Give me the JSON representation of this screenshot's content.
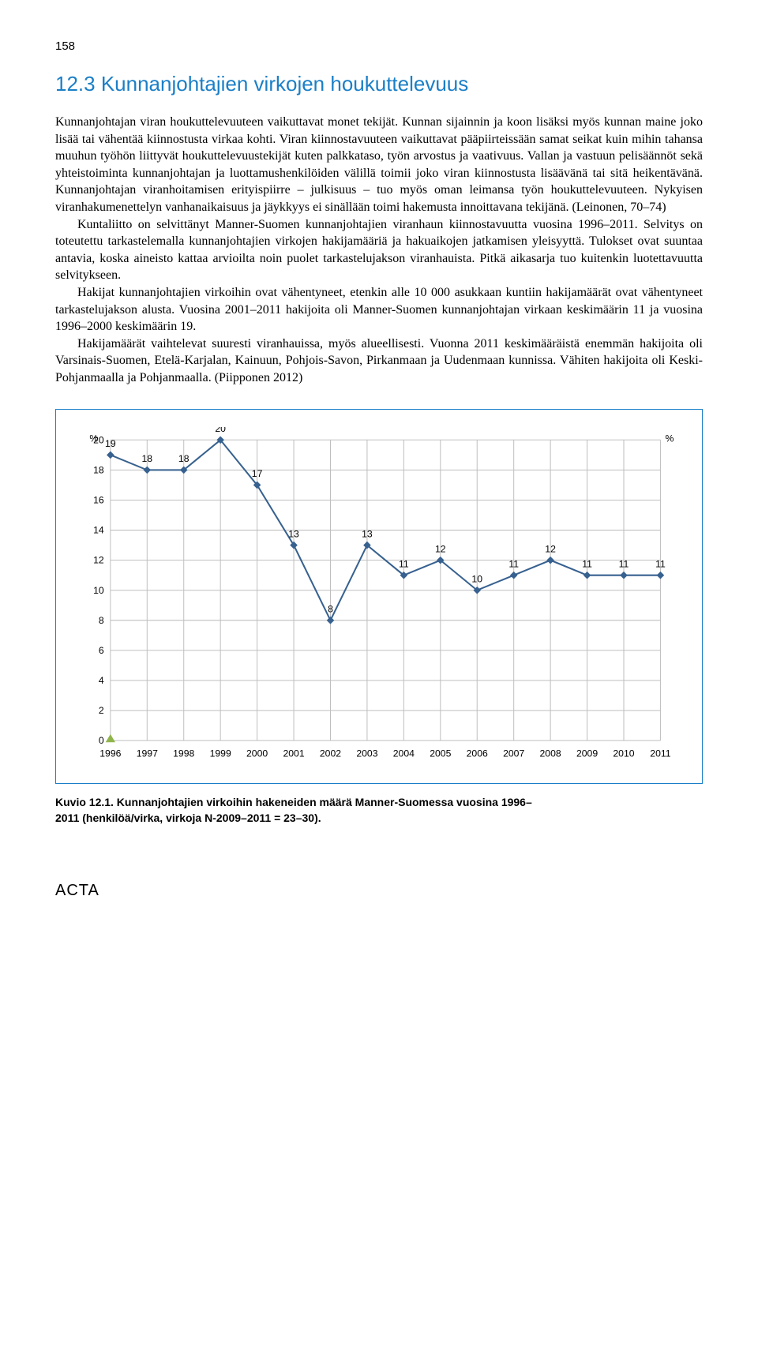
{
  "page_number": "158",
  "heading": "12.3 Kunnanjohtajien virkojen houkuttelevuus",
  "paragraphs": {
    "p1": "Kunnanjohtajan viran houkuttelevuuteen vaikuttavat monet tekijät. Kunnan sijainnin ja koon lisäksi myös kunnan maine joko lisää tai vähentää kiinnostusta virkaa kohti. Viran kiinnostavuuteen vaikuttavat pääpiirteissään samat seikat kuin mihin tahansa muuhun työhön liittyvät houkuttelevuustekijät kuten palkkataso, työn arvostus ja vaativuus. Vallan ja vastuun pelisäännöt sekä yhteistoiminta kunnanjohtajan ja luottamushenkilöiden välillä toimii joko viran kiinnostusta lisäävänä tai sitä heikentävänä. Kunnanjohtajan viranhoitamisen erityispiirre – julkisuus – tuo myös oman leimansa työn houkuttelevuuteen. Nykyisen viranhakumenettelyn vanhanaikaisuus ja jäykkyys ei sinällään toimi hakemusta innoittavana tekijänä. (Leinonen, 70–74)",
    "p2": "Kuntaliitto on selvittänyt Manner-Suomen kunnanjohtajien viranhaun kiinnostavuutta vuosina 1996–2011. Selvitys on toteutettu tarkastelemalla kunnanjohtajien virkojen hakijamääriä ja hakuaikojen jatkamisen yleisyyttä. Tulokset ovat suuntaa antavia, koska aineisto kattaa arvioilta noin puolet tarkastelujakson viranhauista. Pitkä aikasarja tuo kuitenkin luotettavuutta selvitykseen.",
    "p3": "Hakijat kunnanjohtajien virkoihin ovat vähentyneet, etenkin alle 10 000 asukkaan kuntiin hakijamäärät ovat vähentyneet tarkastelujakson alusta. Vuosina 2001–2011 hakijoita oli Manner-Suomen kunnanjohtajan virkaan keskimäärin 11 ja vuosina 1996–2000 keskimäärin 19.",
    "p4": "Hakijamäärät vaihtelevat suuresti viranhauissa, myös alueellisesti. Vuonna 2011 keskimääräistä enemmän hakijoita oli Varsinais-Suomen, Etelä-Karjalan, Kainuun, Pohjois-Savon, Pirkanmaan ja Uudenmaan kunnissa. Vähiten hakijoita oli Keski-Pohjanmaalla ja Pohjanmaalla. (Piipponen 2012)"
  },
  "chart": {
    "type": "line",
    "years": [
      "1996",
      "1997",
      "1998",
      "1999",
      "2000",
      "2001",
      "2002",
      "2003",
      "2004",
      "2005",
      "2006",
      "2007",
      "2008",
      "2009",
      "2010",
      "2011"
    ],
    "values": [
      19,
      18,
      18,
      20,
      17,
      13,
      8,
      13,
      11,
      12,
      10,
      11,
      12,
      11,
      11,
      11
    ],
    "y_ticks": [
      0,
      2,
      4,
      6,
      8,
      10,
      12,
      14,
      16,
      18,
      20
    ],
    "y_axis_label_left": "%",
    "y_axis_label_right": "%",
    "ylim": [
      0,
      20
    ],
    "line_color": "#37618f",
    "marker_color": "#37618f",
    "marker_style": "diamond",
    "marker_size": 8,
    "line_width": 2,
    "grid_color": "#bfbfbf",
    "background_color": "#ffffff",
    "origin_marker_color": "#8fb54a",
    "axis_font_size": 12,
    "label_font_size": 12,
    "tick_font_family": "Arial"
  },
  "caption": {
    "strong": "Kuvio 12.1. Kunnanjohtajien virkoihin hakeneiden määrä Manner-Suomessa vuosina 1996–",
    "rest": "2011 (henkilöä/virka, virkoja N-2009–2011 = 23–30)."
  },
  "footer": "ACTA"
}
